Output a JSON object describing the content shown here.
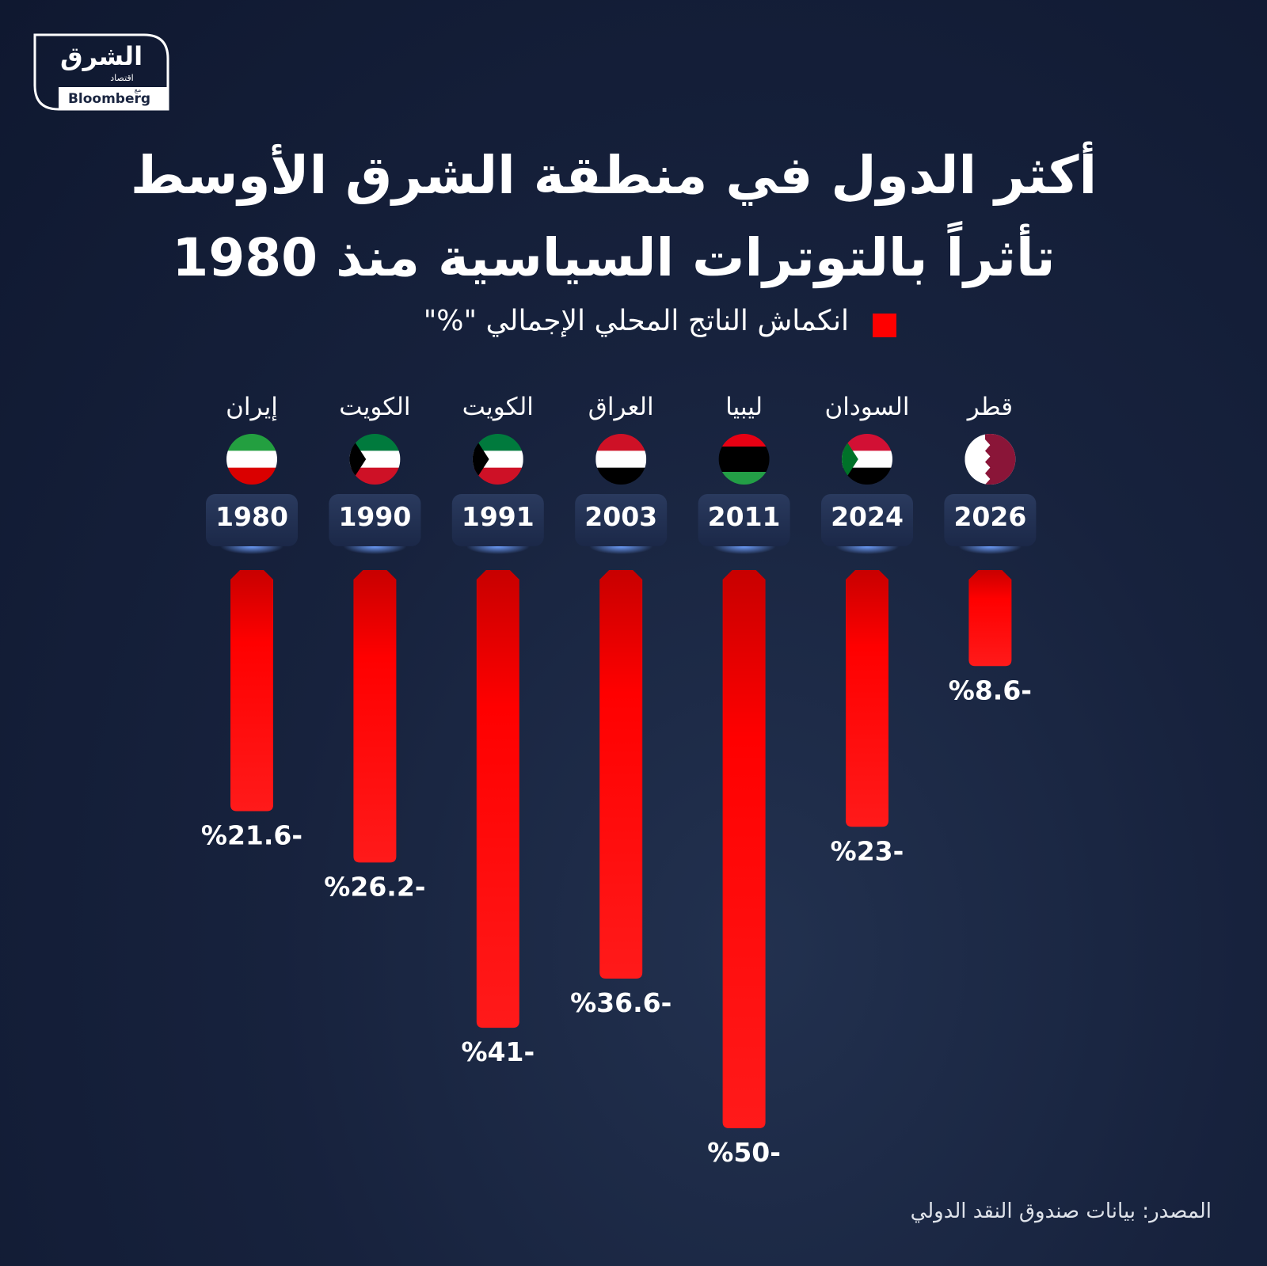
{
  "chart_data": {
    "type": "bar",
    "title": "أكثر الدول في منطقة الشرق الأوسط تأثراً بالتوترات السياسية منذ 1980",
    "categories": [
      "1980",
      "1990",
      "1991",
      "2003",
      "2011",
      "2024",
      "2026"
    ],
    "countries": [
      "إيران",
      "الكويت",
      "الكويت",
      "العراق",
      "ليبيا",
      "السودان",
      "قطر"
    ],
    "series": [
      {
        "name": "انكماش الناتج المحلي الإجمالي \"%\"",
        "color": "#ff0000",
        "values": [
          -21.6,
          -26.2,
          -41,
          -36.6,
          -50,
          -23,
          -8.6
        ],
        "value_labels": [
          "%21.6-",
          "%26.2-",
          "%41-",
          "%36.6-",
          "%50-",
          "%23-",
          "%8.6-"
        ]
      }
    ],
    "ylim": [
      -50,
      0
    ],
    "source": "المصدر: بيانات صندوق النقد الدولي"
  },
  "logo": {
    "name": "الشرق",
    "sub": "اقتصاد",
    "with": "مع",
    "partner": "Bloomberg"
  }
}
